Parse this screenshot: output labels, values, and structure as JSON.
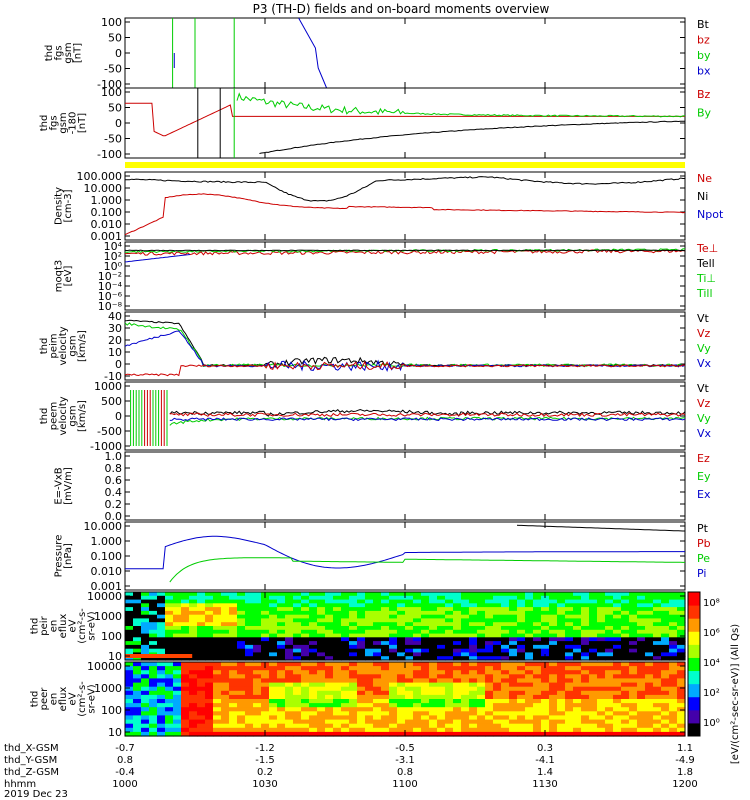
{
  "title": "P3 (TH-D) fields and on-board moments overview",
  "chart_data": {
    "type": "line",
    "xlim": [
      "1000",
      "1200"
    ],
    "panels": [
      {
        "id": "fgs",
        "ylabel": [
          "thd",
          "fgs",
          "gsm",
          "[nT]"
        ],
        "yticks": [
          "100",
          "50",
          "0",
          "-50",
          "-100"
        ],
        "ylim": [
          -100,
          100
        ],
        "legend": [
          {
            "name": "Bt",
            "color": "#000000"
          },
          {
            "name": "bz",
            "color": "#cc0000"
          },
          {
            "name": "by",
            "color": "#00cc00"
          },
          {
            "name": "bx",
            "color": "#0000cc"
          }
        ]
      },
      {
        "id": "fgs-dsl",
        "ylabel": [
          "thd",
          "fgs",
          "gsm",
          "-180",
          "[nT]"
        ],
        "yticks": [
          "100",
          "50",
          "0",
          "-50",
          "-100"
        ],
        "ylim": [
          -120,
          120
        ],
        "legend": [
          {
            "name": "Bz",
            "color": "#cc0000"
          },
          {
            "name": "By",
            "color": "#00cc00"
          }
        ]
      },
      {
        "id": "density",
        "ylabel": [
          "Density",
          "[cm-3]"
        ],
        "yticks": [
          "100.000",
          "10.000",
          "1.000",
          "0.100",
          "0.010",
          "0.001"
        ],
        "ylog": true,
        "ylim": [
          0.001,
          100
        ],
        "legend": [
          {
            "name": "Ne",
            "color": "#cc0000"
          },
          {
            "name": "Ni",
            "color": "#000000"
          },
          {
            "name": "Npot",
            "color": "#0000cc"
          }
        ]
      },
      {
        "id": "temperature",
        "ylabel": [
          "moqt3",
          "[eV]"
        ],
        "yticks": [
          "10⁴",
          "10²",
          "10⁰",
          "10⁻²",
          "10⁻⁴",
          "10⁻⁶",
          "10⁻⁸"
        ],
        "legend": [
          {
            "name": "Te⊥",
            "color": "#cc0000"
          },
          {
            "name": "Tell",
            "color": "#000000"
          },
          {
            "name": "Ti⊥",
            "color": "#00cc00"
          },
          {
            "name": "Till",
            "color": "#00cc00"
          }
        ]
      },
      {
        "id": "peim-velocity",
        "ylabel": [
          "thd",
          "peim",
          "velocity",
          "gsm",
          "[km/s]"
        ],
        "yticks": [
          "40",
          "30",
          "20",
          "10",
          "0",
          "-10"
        ],
        "ylim": [
          -10,
          40
        ],
        "legend": [
          {
            "name": "Vt",
            "color": "#000000"
          },
          {
            "name": "Vz",
            "color": "#cc0000"
          },
          {
            "name": "Vy",
            "color": "#00cc00"
          },
          {
            "name": "Vx",
            "color": "#0000cc"
          }
        ]
      },
      {
        "id": "peem-velocity",
        "ylabel": [
          "thd",
          "peem",
          "velocity",
          "gsm",
          "[km/s]"
        ],
        "yticks": [
          "1000",
          "500",
          "0",
          "-500",
          "-1000"
        ],
        "ylim": [
          -1000,
          1000
        ],
        "legend": [
          {
            "name": "Vt",
            "color": "#000000"
          },
          {
            "name": "Vz",
            "color": "#cc0000"
          },
          {
            "name": "Vy",
            "color": "#00cc00"
          },
          {
            "name": "Vx",
            "color": "#0000cc"
          }
        ]
      },
      {
        "id": "efield",
        "ylabel": [
          "E=-VxB",
          "[mV/m]"
        ],
        "yticks": [
          "1.0",
          "0.8",
          "0.6",
          "0.4",
          "0.2",
          "0.0"
        ],
        "ylim": [
          0,
          1
        ],
        "legend": [
          {
            "name": "Ez",
            "color": "#cc0000"
          },
          {
            "name": "Ey",
            "color": "#00cc00"
          },
          {
            "name": "Ex",
            "color": "#0000cc"
          }
        ]
      },
      {
        "id": "pressure",
        "ylabel": [
          "Pressure",
          "[nPa]"
        ],
        "yticks": [
          "10.000",
          "1.000",
          "0.100",
          "0.010",
          "0.001"
        ],
        "ylog": true,
        "ylim": [
          0.0005,
          20
        ],
        "legend": [
          {
            "name": "Pt",
            "color": "#000000"
          },
          {
            "name": "Pb",
            "color": "#cc0000"
          },
          {
            "name": "Pe",
            "color": "#00cc00"
          },
          {
            "name": "Pi",
            "color": "#0000cc"
          }
        ]
      },
      {
        "id": "peir-spectrogram",
        "ylabel": [
          "thd",
          "peir",
          "en",
          "eflux",
          "eV",
          "(cm²-s-",
          "sr-eV)"
        ],
        "yticks": [
          "10000",
          "1000",
          "100",
          "10"
        ]
      },
      {
        "id": "peer-spectrogram",
        "ylabel": [
          "thd",
          "peer",
          "en",
          "eflux",
          "eV",
          "(cm²-s-",
          "sr-eV)"
        ],
        "yticks": [
          "10000",
          "1000",
          "100",
          "10"
        ]
      }
    ],
    "colorbar": {
      "label": "[eV/(cm²-sec-sr-eV)] (All Qs)",
      "ticks": [
        "10⁸",
        "10⁶",
        "10⁴",
        "10²",
        "10⁰"
      ],
      "colors": [
        "#000000",
        "#4400aa",
        "#0000ff",
        "#00aaff",
        "#00ffcc",
        "#00ff00",
        "#aaff00",
        "#ffff00",
        "#ff9900",
        "#ff3300",
        "#ff0000"
      ]
    },
    "xaxis_rows": [
      {
        "name": "thd_X-GSM",
        "values": [
          "-0.7",
          "-1.2",
          "-0.5",
          "0.3",
          "1.1"
        ]
      },
      {
        "name": "thd_Y-GSM",
        "values": [
          "0.8",
          "-1.5",
          "-3.1",
          "-4.1",
          "-4.9"
        ]
      },
      {
        "name": "thd_Z-GSM",
        "values": [
          "-0.4",
          "0.2",
          "0.8",
          "1.4",
          "1.8"
        ]
      },
      {
        "name": "hhmm",
        "values": [
          "1000",
          "1030",
          "1100",
          "1130",
          "1200"
        ]
      }
    ],
    "date": "2019 Dec 23"
  }
}
